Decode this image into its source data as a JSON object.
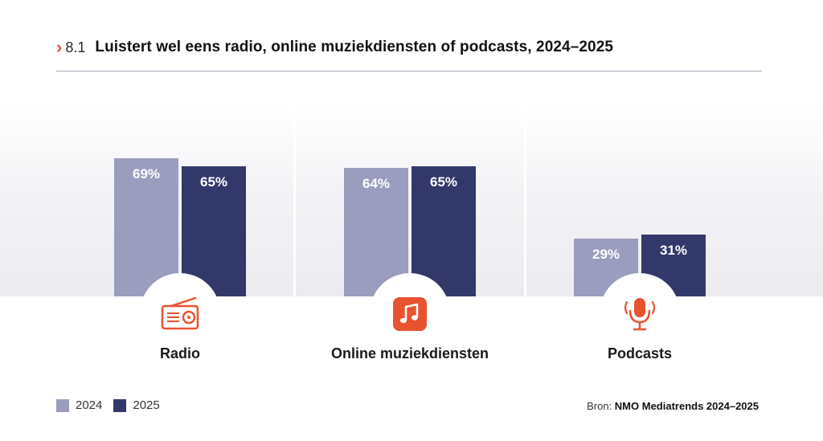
{
  "header": {
    "number": "8.1",
    "title": "Luistert wel eens radio, online muziekdiensten of podcasts, 2024–2025"
  },
  "colors": {
    "accent": "#e8532f",
    "series_2024": "#9b9dbe",
    "series_2025": "#33386b"
  },
  "icons": [
    "radio-icon",
    "music-note-icon",
    "microphone-icon"
  ],
  "chart_data": {
    "type": "bar",
    "categories": [
      "Radio",
      "Online muziekdiensten",
      "Podcasts"
    ],
    "series": [
      {
        "name": "2024",
        "values": [
          69,
          64,
          29
        ],
        "labels": [
          "69%",
          "64%",
          "29%"
        ]
      },
      {
        "name": "2025",
        "values": [
          65,
          65,
          31
        ],
        "labels": [
          "65%",
          "65%",
          "31%"
        ]
      }
    ],
    "unit": "%"
  },
  "legend": [
    {
      "label": "2024"
    },
    {
      "label": "2025"
    }
  ],
  "source": {
    "prefix": "Bron:",
    "name": "NMO Mediatrends 2024–2025"
  }
}
